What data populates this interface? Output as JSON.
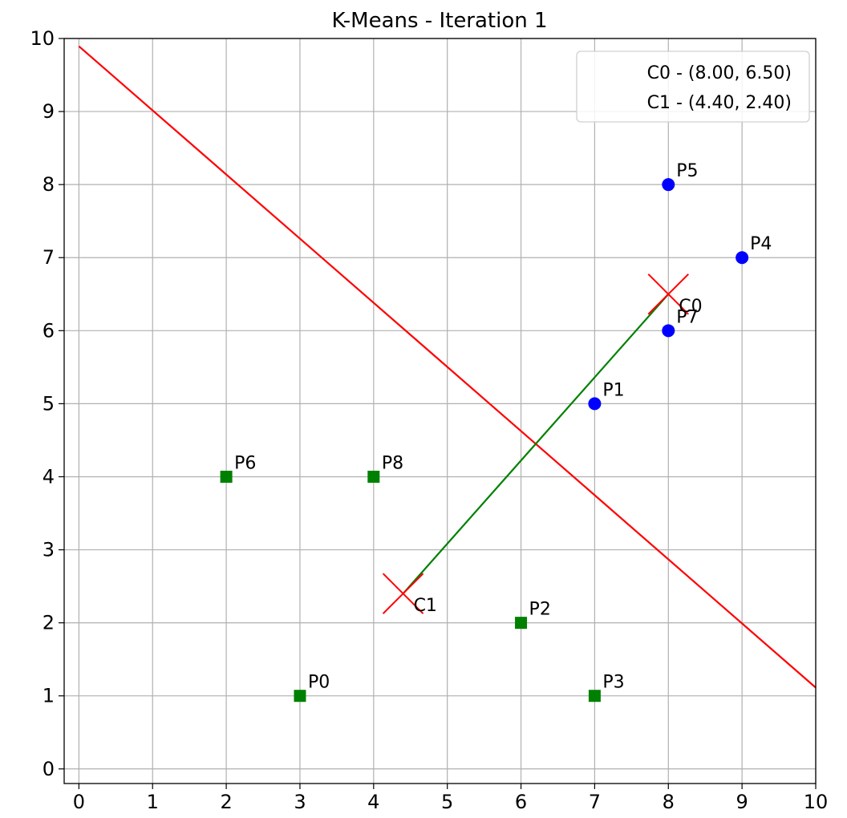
{
  "chart_data": {
    "type": "scatter",
    "title": "K-Means - Iteration 1",
    "xlabel": "",
    "ylabel": "",
    "xlim": [
      0,
      10
    ],
    "ylim": [
      0,
      10
    ],
    "x_ticks": [
      "0",
      "1",
      "2",
      "3",
      "4",
      "5",
      "6",
      "7",
      "8",
      "9",
      "10"
    ],
    "y_ticks": [
      "0",
      "1",
      "2",
      "3",
      "4",
      "5",
      "6",
      "7",
      "8",
      "9",
      "10"
    ],
    "grid": true,
    "points": [
      {
        "label": "P0",
        "x": 3,
        "y": 1,
        "cluster": 1
      },
      {
        "label": "P1",
        "x": 7,
        "y": 5,
        "cluster": 0
      },
      {
        "label": "P2",
        "x": 6,
        "y": 2,
        "cluster": 1
      },
      {
        "label": "P3",
        "x": 7,
        "y": 1,
        "cluster": 1
      },
      {
        "label": "P4",
        "x": 9,
        "y": 7,
        "cluster": 0
      },
      {
        "label": "P5",
        "x": 8,
        "y": 8,
        "cluster": 0
      },
      {
        "label": "P6",
        "x": 2,
        "y": 4,
        "cluster": 1
      },
      {
        "label": "P7",
        "x": 8,
        "y": 6,
        "cluster": 0
      },
      {
        "label": "P8",
        "x": 4,
        "y": 4,
        "cluster": 1
      }
    ],
    "centroids": [
      {
        "label": "C0",
        "x": 8.0,
        "y": 6.5
      },
      {
        "label": "C1",
        "x": 4.4,
        "y": 2.4
      }
    ],
    "legend": [
      "C0 - (8.00, 6.50)",
      "C1 - (4.40, 2.40)"
    ],
    "legend_position": "top-right",
    "colors": {
      "cluster0": "#0000ff",
      "cluster1": "#008000",
      "centroid": "#ff0000",
      "boundary": "#ff0000",
      "connector": "#008000",
      "grid": "#b0b0b0"
    }
  }
}
